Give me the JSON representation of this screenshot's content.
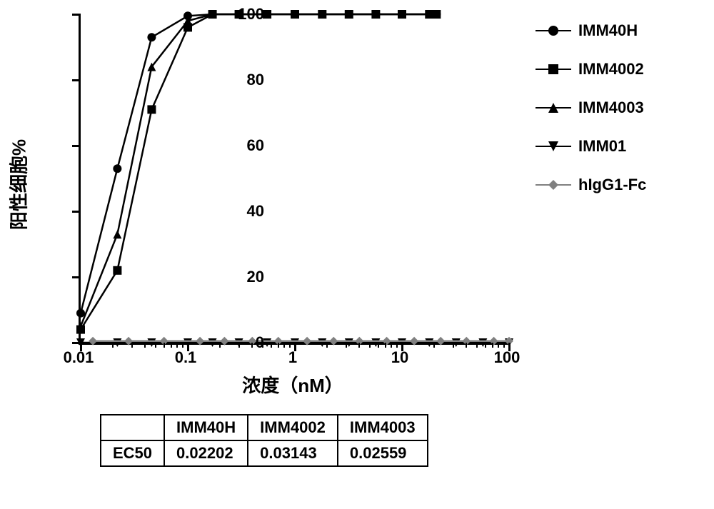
{
  "chart": {
    "type": "line",
    "xscale": "log",
    "xlim": [
      0.01,
      100
    ],
    "ylim": [
      0,
      100
    ],
    "ytick_step": 20,
    "xtick_labels": [
      "0.01",
      "0.1",
      "1",
      "10",
      "100"
    ],
    "ytick_labels": [
      "0",
      "20",
      "40",
      "60",
      "80",
      "100"
    ],
    "x_axis_title": "浓度（nM）",
    "y_axis_title": "阳性细胞%",
    "background_color": "#ffffff",
    "axis_color": "#000000",
    "series": [
      {
        "name": "IMM40H",
        "marker": "circle",
        "color": "#000000",
        "x": [
          0.01,
          0.022,
          0.046,
          0.1,
          0.17,
          0.3,
          0.55,
          1,
          1.8,
          3.2,
          5.7,
          10,
          18,
          21
        ],
        "y": [
          9,
          53,
          93,
          99.5,
          100,
          100,
          100,
          100,
          100,
          100,
          100,
          100,
          100,
          100
        ]
      },
      {
        "name": "IMM4002",
        "marker": "square",
        "color": "#000000",
        "x": [
          0.01,
          0.022,
          0.046,
          0.1,
          0.17,
          0.3,
          0.55,
          1,
          1.8,
          3.2,
          5.7,
          10,
          18,
          21
        ],
        "y": [
          4,
          22,
          71,
          96,
          100,
          100,
          100,
          100,
          100,
          100,
          100,
          100,
          100,
          100
        ]
      },
      {
        "name": "IMM4003",
        "marker": "triangle-up",
        "color": "#000000",
        "x": [
          0.01,
          0.022,
          0.046,
          0.1,
          0.17,
          0.3,
          0.55,
          1,
          1.8,
          3.2,
          5.7,
          10,
          18,
          21
        ],
        "y": [
          5,
          33,
          84,
          98,
          100,
          100,
          100,
          100,
          100,
          100,
          100,
          100,
          100,
          100
        ]
      },
      {
        "name": "IMM01",
        "marker": "triangle-down",
        "color": "#000000",
        "x": [
          0.01,
          0.022,
          0.046,
          0.1,
          0.17,
          0.3,
          0.55,
          1,
          1.8,
          3.2,
          5.7,
          10,
          18,
          32,
          57,
          100
        ],
        "y": [
          0,
          0,
          0,
          0,
          0,
          0,
          0,
          0,
          0,
          0,
          0,
          0,
          0,
          0,
          0,
          0
        ]
      },
      {
        "name": "hIgG1-Fc",
        "marker": "diamond",
        "color": "#808080",
        "x": [
          0.013,
          0.028,
          0.06,
          0.13,
          0.22,
          0.4,
          0.7,
          1.3,
          2.3,
          4,
          7.2,
          13,
          23,
          40,
          72,
          100
        ],
        "y": [
          0.5,
          0.5,
          0.5,
          0.5,
          0.5,
          0.5,
          0.5,
          0.5,
          0.5,
          0.5,
          0.5,
          0.5,
          0.5,
          0.5,
          0.5,
          0.5
        ]
      }
    ]
  },
  "table": {
    "columns": [
      "",
      "IMM40H",
      "IMM4002",
      "IMM4003"
    ],
    "rows": [
      [
        "EC50",
        "0.02202",
        "0.03143",
        "0.02559"
      ]
    ]
  }
}
